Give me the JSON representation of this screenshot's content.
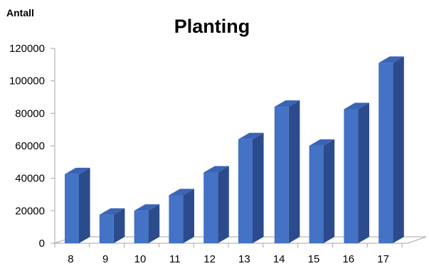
{
  "chart_data": {
    "type": "bar",
    "title": "Planting",
    "ylabel": "Antall",
    "xlabel": "",
    "categories": [
      "8",
      "9",
      "10",
      "11",
      "12",
      "13",
      "14",
      "15",
      "16",
      "17"
    ],
    "values": [
      46500,
      21500,
      24000,
      33500,
      47500,
      68000,
      88000,
      64000,
      86500,
      115000
    ],
    "ylim": [
      0,
      120000
    ],
    "yticks": [
      "0",
      "20000",
      "40000",
      "60000",
      "80000",
      "100000",
      "120000"
    ],
    "grid": false,
    "legend": "none",
    "colors": {
      "bar_front": "#4472C4",
      "bar_side": "#2B4B8C",
      "bar_top": "#3A64B6",
      "floor": "#ffffff",
      "axis": "#a6a6a6"
    }
  }
}
